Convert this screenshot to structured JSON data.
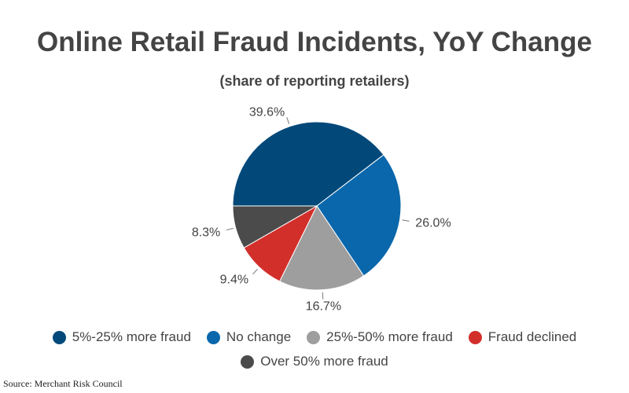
{
  "chart_data": {
    "type": "pie",
    "title": "Online Retail Fraud Incidents, YoY Change",
    "subtitle": "(share of reporting retailers)",
    "categories": [
      "5%-25% more fraud",
      "No change",
      "25%-50% more fraud",
      "Fraud declined",
      "Over 50% more fraud"
    ],
    "values": [
      39.6,
      26.0,
      16.7,
      9.4,
      8.3
    ],
    "labels": [
      "39.6%",
      "26.0%",
      "16.7%",
      "9.4%",
      "8.3%"
    ],
    "colors": [
      "#02497a",
      "#0a67ab",
      "#9e9e9e",
      "#d22f2b",
      "#4b4b4b"
    ],
    "start_angle": "9 o'clock, clockwise",
    "legend_position": "bottom"
  },
  "source": "Source: Merchant Risk Council"
}
